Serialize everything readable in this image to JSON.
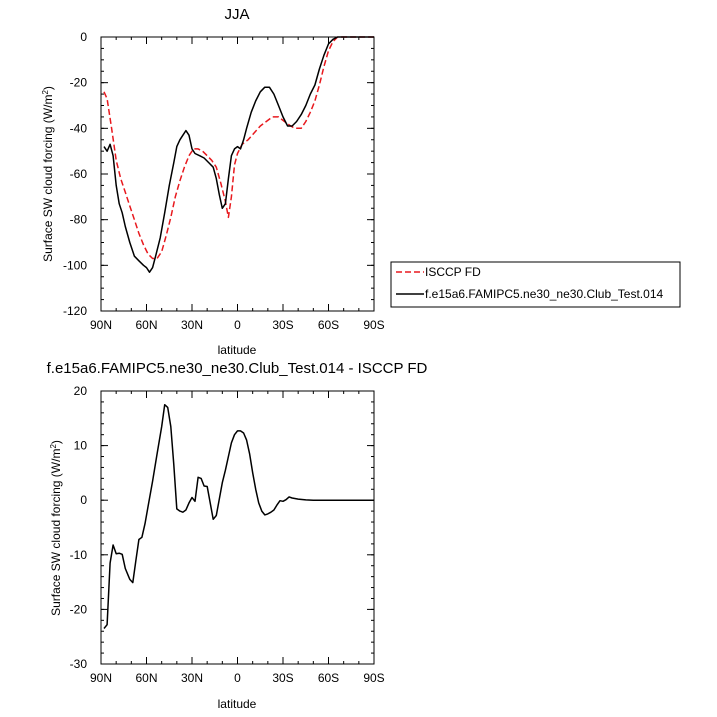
{
  "chart_data": [
    {
      "type": "line",
      "title": "JJA",
      "xlabel": "latitude",
      "ylabel_main": "Surface SW cloud forcing (W/m",
      "ylabel_sup": "2",
      "ylabel_tail": ")",
      "xlim": [
        90,
        -90
      ],
      "ylim": [
        -120,
        0
      ],
      "xticks": [
        90,
        60,
        30,
        0,
        -30,
        -60,
        -90
      ],
      "xtick_labels": [
        "90N",
        "60N",
        "30N",
        "0",
        "30S",
        "60S",
        "90S"
      ],
      "yticks": [
        -120,
        -100,
        -80,
        -60,
        -40,
        -20,
        0
      ],
      "ytick_labels": [
        "-120",
        "-100",
        "-80",
        "-60",
        "-40",
        "-20",
        "0"
      ],
      "legend_position": "right",
      "series": [
        {
          "name": "ISCCP FD",
          "color": "#e8191e",
          "dash": "dashed",
          "points": [
            [
              88,
              -24
            ],
            [
              86,
              -27
            ],
            [
              83,
              -40
            ],
            [
              80,
              -54
            ],
            [
              77,
              -62
            ],
            [
              74,
              -68
            ],
            [
              71,
              -74
            ],
            [
              68,
              -80
            ],
            [
              65,
              -86
            ],
            [
              62,
              -91
            ],
            [
              59,
              -95
            ],
            [
              56,
              -97
            ],
            [
              53,
              -97
            ],
            [
              50,
              -94
            ],
            [
              47,
              -87
            ],
            [
              44,
              -79
            ],
            [
              41,
              -70
            ],
            [
              38,
              -63
            ],
            [
              35,
              -57
            ],
            [
              32,
              -52
            ],
            [
              29,
              -49
            ],
            [
              26,
              -49
            ],
            [
              23,
              -50
            ],
            [
              20,
              -52
            ],
            [
              17,
              -54
            ],
            [
              14,
              -57
            ],
            [
              11,
              -64
            ],
            [
              8,
              -72
            ],
            [
              6,
              -79
            ],
            [
              4,
              -70
            ],
            [
              2,
              -56
            ],
            [
              0,
              -51
            ],
            [
              -3,
              -47
            ],
            [
              -7,
              -45
            ],
            [
              -11,
              -42
            ],
            [
              -15,
              -39
            ],
            [
              -19,
              -37
            ],
            [
              -23,
              -35
            ],
            [
              -27,
              -35
            ],
            [
              -31,
              -37
            ],
            [
              -35,
              -39
            ],
            [
              -38,
              -40
            ],
            [
              -42,
              -40
            ],
            [
              -45,
              -37
            ],
            [
              -48,
              -33
            ],
            [
              -51,
              -28
            ],
            [
              -54,
              -21
            ],
            [
              -57,
              -13
            ],
            [
              -60,
              -6
            ],
            [
              -63,
              -2
            ],
            [
              -66,
              0
            ],
            [
              -70,
              0
            ],
            [
              -75,
              0
            ],
            [
              -80,
              0
            ],
            [
              -90,
              0
            ]
          ]
        },
        {
          "name": "f.e15a6.FAMIPC5.ne30_ne30.Club_Test.014",
          "color": "#000000",
          "dash": "solid",
          "points": [
            [
              88,
              -48
            ],
            [
              86,
              -50
            ],
            [
              84,
              -47
            ],
            [
              82,
              -52
            ],
            [
              80,
              -65
            ],
            [
              78,
              -73
            ],
            [
              76,
              -77
            ],
            [
              74,
              -83
            ],
            [
              71,
              -90
            ],
            [
              68,
              -96
            ],
            [
              65,
              -98
            ],
            [
              62,
              -100
            ],
            [
              60,
              -101
            ],
            [
              58,
              -103
            ],
            [
              56,
              -101
            ],
            [
              54,
              -96
            ],
            [
              51,
              -88
            ],
            [
              48,
              -77
            ],
            [
              45,
              -65
            ],
            [
              42,
              -55
            ],
            [
              40,
              -48
            ],
            [
              38,
              -45
            ],
            [
              36,
              -43
            ],
            [
              34,
              -41
            ],
            [
              32,
              -43
            ],
            [
              30,
              -49
            ],
            [
              28,
              -51
            ],
            [
              25,
              -52
            ],
            [
              22,
              -53
            ],
            [
              19,
              -55
            ],
            [
              16,
              -57
            ],
            [
              14,
              -62
            ],
            [
              12,
              -69
            ],
            [
              10,
              -75
            ],
            [
              8,
              -73
            ],
            [
              6,
              -62
            ],
            [
              4,
              -52
            ],
            [
              2,
              -49
            ],
            [
              0,
              -48
            ],
            [
              -2,
              -49
            ],
            [
              -4,
              -45
            ],
            [
              -6,
              -40
            ],
            [
              -9,
              -33
            ],
            [
              -12,
              -28
            ],
            [
              -15,
              -24
            ],
            [
              -18,
              -22
            ],
            [
              -21,
              -22
            ],
            [
              -24,
              -25
            ],
            [
              -27,
              -30
            ],
            [
              -30,
              -35
            ],
            [
              -33,
              -39
            ],
            [
              -36,
              -39
            ],
            [
              -39,
              -37
            ],
            [
              -42,
              -34
            ],
            [
              -45,
              -30
            ],
            [
              -48,
              -25
            ],
            [
              -51,
              -21
            ],
            [
              -54,
              -14
            ],
            [
              -57,
              -8
            ],
            [
              -60,
              -3
            ],
            [
              -63,
              -1
            ],
            [
              -66,
              0
            ],
            [
              -70,
              0
            ],
            [
              -75,
              0
            ],
            [
              -80,
              0
            ],
            [
              -90,
              0
            ]
          ]
        }
      ]
    },
    {
      "type": "line",
      "title": "f.e15a6.FAMIPC5.ne30_ne30.Club_Test.014 - ISCCP FD",
      "xlabel": "latitude",
      "ylabel_main": "Surface SW cloud forcing (W/m",
      "ylabel_sup": "2",
      "ylabel_tail": ")",
      "xlim": [
        90,
        -90
      ],
      "ylim": [
        -30,
        20
      ],
      "xticks": [
        90,
        60,
        30,
        0,
        -30,
        -60,
        -90
      ],
      "xtick_labels": [
        "90N",
        "60N",
        "30N",
        "0",
        "30S",
        "60S",
        "90S"
      ],
      "yticks": [
        -30,
        -20,
        -10,
        0,
        10,
        20
      ],
      "ytick_labels": [
        "-30",
        "-20",
        "-10",
        "0",
        "10",
        "20"
      ],
      "series": [
        {
          "color": "#000000",
          "dash": "solid",
          "points": [
            [
              88,
              -23.5
            ],
            [
              86,
              -22.8
            ],
            [
              84,
              -11.5
            ],
            [
              82,
              -8.2
            ],
            [
              80,
              -9.8
            ],
            [
              78,
              -9.7
            ],
            [
              76,
              -9.9
            ],
            [
              74,
              -12.5
            ],
            [
              71,
              -14.5
            ],
            [
              69,
              -15.1
            ],
            [
              67,
              -11
            ],
            [
              65,
              -7.2
            ],
            [
              63,
              -6.8
            ],
            [
              61,
              -4.3
            ],
            [
              59,
              -1.2
            ],
            [
              56,
              3.5
            ],
            [
              53,
              8.5
            ],
            [
              50,
              13.5
            ],
            [
              48,
              17.5
            ],
            [
              46,
              17
            ],
            [
              44,
              13.5
            ],
            [
              42,
              6.5
            ],
            [
              40,
              -1.6
            ],
            [
              38,
              -2
            ],
            [
              36,
              -2.2
            ],
            [
              34,
              -1.8
            ],
            [
              32,
              -0.5
            ],
            [
              30,
              0.5
            ],
            [
              28,
              -0.2
            ],
            [
              26,
              4.2
            ],
            [
              24,
              4
            ],
            [
              22,
              2.6
            ],
            [
              20,
              2.5
            ],
            [
              18,
              -0.5
            ],
            [
              16,
              -3.5
            ],
            [
              14,
              -2.8
            ],
            [
              12,
              0.2
            ],
            [
              10,
              3.2
            ],
            [
              8,
              5.5
            ],
            [
              6,
              8
            ],
            [
              4,
              10.5
            ],
            [
              2,
              12
            ],
            [
              0,
              12.7
            ],
            [
              -2,
              12.7
            ],
            [
              -4,
              12.3
            ],
            [
              -6,
              11
            ],
            [
              -8,
              8.5
            ],
            [
              -10,
              5
            ],
            [
              -12,
              2
            ],
            [
              -14,
              -0.5
            ],
            [
              -16,
              -2
            ],
            [
              -18,
              -2.7
            ],
            [
              -20,
              -2.5
            ],
            [
              -22,
              -2.2
            ],
            [
              -24,
              -1.8
            ],
            [
              -26,
              -0.9
            ],
            [
              -28,
              -0.1
            ],
            [
              -30,
              -0.2
            ],
            [
              -32,
              0.1
            ],
            [
              -34,
              0.6
            ],
            [
              -36,
              0.4
            ],
            [
              -40,
              0.2
            ],
            [
              -45,
              0.05
            ],
            [
              -50,
              0
            ],
            [
              -90,
              0
            ]
          ]
        }
      ]
    }
  ]
}
